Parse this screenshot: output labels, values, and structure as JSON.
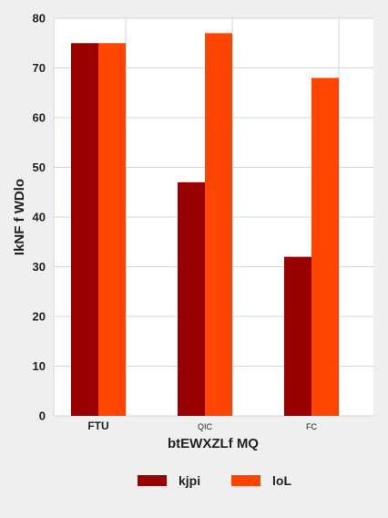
{
  "chart_data": {
    "type": "bar",
    "categories": [
      "FTU",
      "QIC",
      "FC"
    ],
    "series": [
      {
        "name": "kjpi",
        "values": [
          75,
          47,
          32
        ],
        "color": "#990000"
      },
      {
        "name": "loL",
        "values": [
          75,
          77,
          68
        ],
        "color": "#ff4500"
      }
    ],
    "title": "",
    "xlabel": "btEWXZLf MQ",
    "ylabel": "IkNF f WDlo",
    "ylim": [
      0,
      80
    ],
    "yticks": [
      0,
      10,
      20,
      30,
      40,
      50,
      60,
      70,
      80
    ],
    "grid": true,
    "legend_position": "bottom"
  }
}
